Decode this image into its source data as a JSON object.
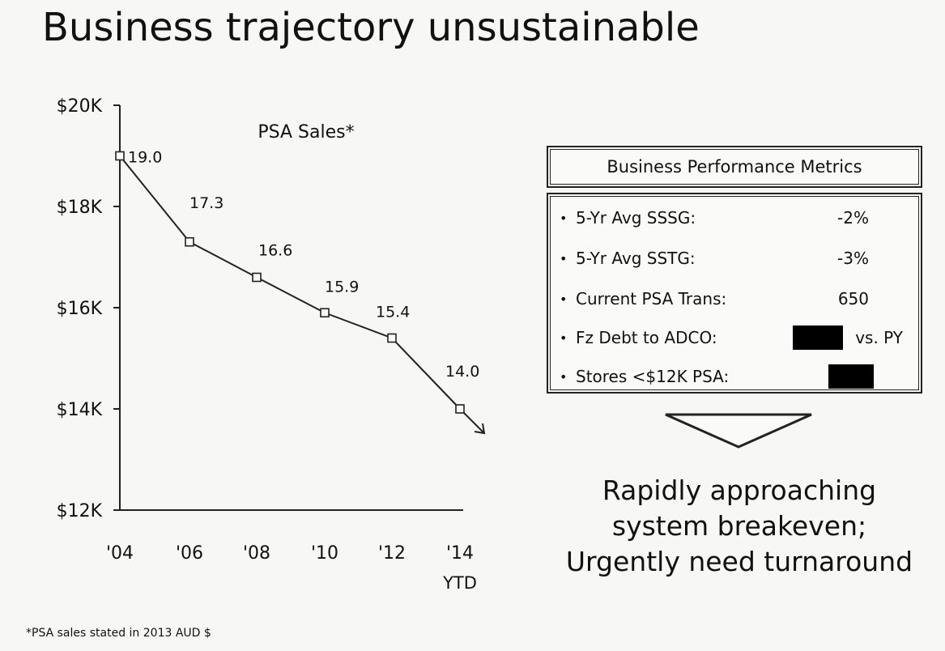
{
  "slide": {
    "title": "Business trajectory unsustainable",
    "footnote": "*PSA sales stated in 2013 AUD $"
  },
  "chart_data": {
    "type": "line",
    "title": "PSA Sales*",
    "x": [
      "'04",
      "'06",
      "'08",
      "'10",
      "'12",
      "'14"
    ],
    "x_sublabels": [
      "",
      "",
      "",
      "",
      "",
      "YTD"
    ],
    "y_ticks": [
      "$20K",
      "$18K",
      "$16K",
      "$14K",
      "$12K"
    ],
    "ylim": [
      12,
      20
    ],
    "series": [
      {
        "values": [
          19.0,
          17.3,
          16.6,
          15.9,
          15.4,
          14.0
        ],
        "labels": [
          "19.0",
          "17.3",
          "16.6",
          "15.9",
          "15.4",
          "14.0"
        ],
        "marker": "square"
      }
    ],
    "trend_arrow": true,
    "grid": false
  },
  "metrics": {
    "header": "Business Performance Metrics",
    "rows": [
      {
        "label": "5-Yr Avg SSSG:",
        "value": "-2%"
      },
      {
        "label": "5-Yr Avg SSTG:",
        "value": "-3%"
      },
      {
        "label": "Current PSA Trans:",
        "value": "650"
      },
      {
        "label": "Fz Debt to ADCO:",
        "value": "",
        "redacted": true,
        "suffix": "vs. PY"
      },
      {
        "label": "Stores <$12K PSA:",
        "value": "",
        "redacted": true
      }
    ]
  },
  "conclusion": {
    "line1": "Rapidly approaching",
    "line2": "system breakeven;",
    "line3": "Urgently need turnaround"
  }
}
